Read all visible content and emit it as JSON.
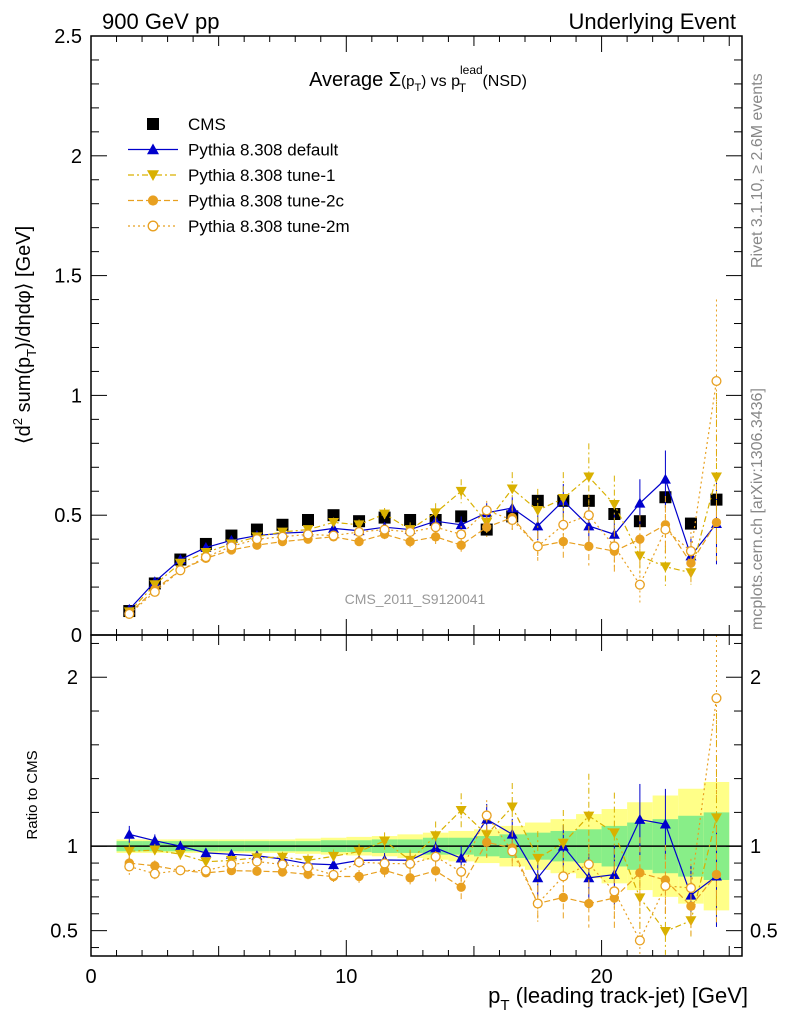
{
  "header": {
    "left": "900 GeV pp",
    "right": "Underlying Event"
  },
  "side_labels": {
    "rivet": "Rivet 3.1.10, ≥ 2.6M events",
    "mcplots": "mcplots.cern.ch [arXiv:1306.3436]"
  },
  "watermark": "CMS_2011_S9120041",
  "chart_data": {
    "type": "scatter",
    "title_parts": {
      "prefix": "Average ",
      "sigma": "Σ",
      "paren_open": "(p",
      "sub_t": "T",
      "paren_close": ")",
      "vs": " vs p",
      "sup_lead": "lead",
      "sub_t2": "T",
      "suffix": " (NSD)"
    },
    "ylabel_parts": {
      "a": "⟨d",
      "sup2": "2",
      "b": " sum(p",
      "subT": "T",
      "c": ")/dηdφ⟩ [GeV]"
    },
    "xlabel_parts": {
      "p": "p",
      "subT": "T",
      "rest": " (leading track-jet) [GeV]"
    },
    "ratio_ylabel": "Ratio to CMS",
    "xlim": [
      0,
      25.5
    ],
    "ylim": [
      0,
      2.5
    ],
    "ratio_ylim": [
      0.35,
      2.25
    ],
    "x_ticks": [
      "0",
      "10",
      "20"
    ],
    "y_ticks": [
      "0",
      "0.5",
      "1",
      "1.5",
      "2",
      "2.5"
    ],
    "ratio_y_ticks_left": [
      "0.5",
      "1",
      "2"
    ],
    "ratio_y_ticks_right": [
      "0.5",
      "1",
      "2"
    ],
    "x": [
      1.5,
      2.5,
      3.5,
      4.5,
      5.5,
      6.5,
      7.5,
      8.5,
      9.5,
      10.5,
      11.5,
      12.5,
      13.5,
      14.5,
      15.5,
      16.5,
      17.5,
      18.5,
      19.5,
      20.5,
      21.5,
      22.5,
      23.5,
      24.5
    ],
    "series": [
      {
        "name": "CMS",
        "color": "#000000",
        "marker": "square",
        "values": [
          0.1,
          0.215,
          0.315,
          0.38,
          0.415,
          0.44,
          0.46,
          0.48,
          0.5,
          0.475,
          0.49,
          0.48,
          0.48,
          0.495,
          0.44,
          0.495,
          0.56,
          0.56,
          0.56,
          0.505,
          0.475,
          0.575,
          0.465,
          0.565
        ],
        "band_inner": [
          0.03,
          0.03,
          0.03,
          0.03,
          0.03,
          0.03,
          0.03,
          0.03,
          0.035,
          0.035,
          0.04,
          0.04,
          0.05,
          0.05,
          0.06,
          0.07,
          0.08,
          0.09,
          0.1,
          0.12,
          0.14,
          0.16,
          0.18,
          0.2
        ],
        "band_outer": [
          0.04,
          0.04,
          0.04,
          0.04,
          0.04,
          0.04,
          0.04,
          0.045,
          0.05,
          0.055,
          0.06,
          0.07,
          0.08,
          0.09,
          0.1,
          0.12,
          0.14,
          0.16,
          0.19,
          0.22,
          0.26,
          0.3,
          0.34,
          0.38
        ]
      },
      {
        "name": "Pythia 8.308 default",
        "color": "#0000cc",
        "marker": "triangle-up",
        "dash": "",
        "values": [
          0.107,
          0.222,
          0.315,
          0.365,
          0.395,
          0.415,
          0.425,
          0.43,
          0.445,
          0.435,
          0.45,
          0.44,
          0.475,
          0.46,
          0.51,
          0.53,
          0.455,
          0.56,
          0.455,
          0.42,
          0.55,
          0.65,
          0.33,
          0.465
        ],
        "err": [
          0.005,
          0.008,
          0.01,
          0.01,
          0.01,
          0.012,
          0.012,
          0.014,
          0.016,
          0.018,
          0.02,
          0.025,
          0.03,
          0.035,
          0.04,
          0.045,
          0.06,
          0.07,
          0.08,
          0.09,
          0.1,
          0.12,
          0.08,
          0.17
        ]
      },
      {
        "name": "Pythia 8.308 tune-1",
        "color": "#d9b000",
        "marker": "triangle-down",
        "dash": "6,3,2,3",
        "values": [
          0.097,
          0.21,
          0.3,
          0.345,
          0.38,
          0.41,
          0.43,
          0.44,
          0.47,
          0.46,
          0.505,
          0.44,
          0.51,
          0.6,
          0.47,
          0.61,
          0.52,
          0.57,
          0.66,
          0.545,
          0.33,
          0.285,
          0.26,
          0.66
        ],
        "err": [
          0.005,
          0.008,
          0.01,
          0.01,
          0.012,
          0.014,
          0.015,
          0.017,
          0.02,
          0.022,
          0.025,
          0.03,
          0.04,
          0.05,
          0.06,
          0.07,
          0.09,
          0.11,
          0.14,
          0.12,
          0.09,
          0.08,
          0.05,
          0.35
        ]
      },
      {
        "name": "Pythia 8.308 tune-2c",
        "color": "#e8a020",
        "marker": "circle",
        "dash": "6,3",
        "values": [
          0.09,
          0.19,
          0.27,
          0.32,
          0.355,
          0.375,
          0.39,
          0.4,
          0.41,
          0.39,
          0.42,
          0.39,
          0.41,
          0.375,
          0.45,
          0.49,
          0.37,
          0.39,
          0.37,
          0.35,
          0.4,
          0.46,
          0.3,
          0.47
        ],
        "err": [
          0.005,
          0.007,
          0.009,
          0.01,
          0.011,
          0.012,
          0.013,
          0.014,
          0.016,
          0.018,
          0.02,
          0.024,
          0.03,
          0.035,
          0.04,
          0.05,
          0.06,
          0.07,
          0.08,
          0.09,
          0.1,
          0.12,
          0.08,
          0.16
        ]
      },
      {
        "name": "Pythia 8.308 tune-2m",
        "color": "#e8a020",
        "marker": "circle-open",
        "dash": "2,3",
        "values": [
          0.088,
          0.18,
          0.27,
          0.325,
          0.37,
          0.4,
          0.41,
          0.42,
          0.415,
          0.43,
          0.44,
          0.43,
          0.45,
          0.42,
          0.52,
          0.48,
          0.37,
          0.46,
          0.5,
          0.37,
          0.21,
          0.44,
          0.35,
          1.06
        ],
        "err": [
          0.005,
          0.007,
          0.009,
          0.01,
          0.011,
          0.012,
          0.013,
          0.014,
          0.016,
          0.018,
          0.02,
          0.024,
          0.03,
          0.035,
          0.04,
          0.05,
          0.06,
          0.07,
          0.08,
          0.09,
          0.08,
          0.1,
          0.08,
          0.34
        ]
      }
    ]
  }
}
